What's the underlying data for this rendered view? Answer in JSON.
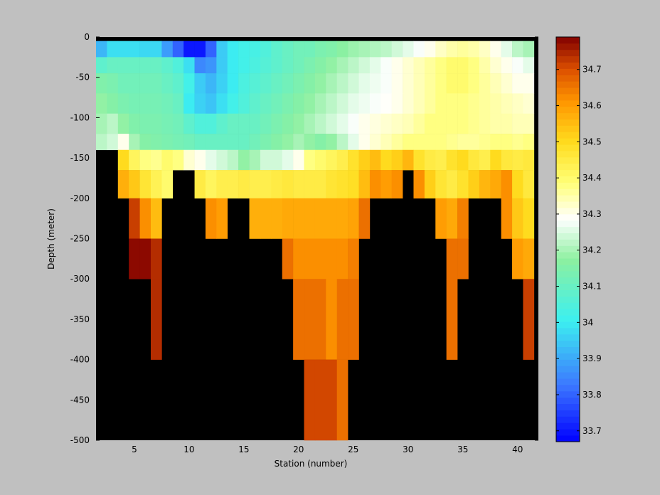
{
  "chart_data": {
    "type": "heatmap",
    "xlabel": "Station (number)",
    "ylabel": "Depth (meter)",
    "xlim": [
      1.5,
      41.9
    ],
    "ylim": [
      -500,
      0
    ],
    "xticks": [
      5,
      10,
      15,
      20,
      25,
      30,
      35,
      40
    ],
    "yticks": [
      0,
      -50,
      -100,
      -150,
      -200,
      -250,
      -300,
      -350,
      -400,
      -450,
      -500
    ],
    "colorbar": {
      "range": [
        33.67,
        34.79
      ],
      "ticks": [
        33.7,
        33.8,
        33.9,
        34,
        34.1,
        34.2,
        34.3,
        34.4,
        34.5,
        34.6,
        34.7
      ],
      "colormap": "jet-like: blue-cyan-green-white-yellow-orange-darkred"
    },
    "nodata_color": "#000000",
    "depth_rows": [
      {
        "depth_top": -5,
        "depth_bottom": -25,
        "stations": [
          2,
          3,
          4,
          5,
          6,
          7,
          8,
          9,
          10,
          11,
          12,
          13,
          14,
          15,
          16,
          17,
          18,
          19,
          20,
          21,
          22,
          23,
          24,
          25,
          26,
          27,
          28,
          29,
          30,
          31,
          32,
          33,
          34,
          35,
          36,
          37,
          38,
          39,
          40,
          41
        ],
        "values": [
          33.92,
          33.98,
          33.98,
          33.98,
          33.97,
          33.97,
          33.88,
          33.8,
          33.7,
          33.7,
          33.8,
          33.95,
          34.0,
          34.02,
          34.03,
          34.05,
          34.08,
          34.1,
          34.12,
          34.12,
          34.14,
          34.15,
          34.17,
          34.19,
          34.2,
          34.21,
          34.22,
          34.24,
          34.26,
          34.28,
          34.3,
          34.33,
          34.35,
          34.36,
          34.35,
          34.33,
          34.3,
          34.26,
          34.22,
          34.2
        ]
      },
      {
        "depth_top": -25,
        "depth_bottom": -45,
        "stations": [
          2,
          3,
          4,
          5,
          6,
          7,
          8,
          9,
          10,
          11,
          12,
          13,
          14,
          15,
          16,
          17,
          18,
          19,
          20,
          21,
          22,
          23,
          24,
          25,
          26,
          27,
          28,
          29,
          30,
          31,
          32,
          33,
          34,
          35,
          36,
          37,
          38,
          39,
          40,
          41
        ],
        "values": [
          34.08,
          34.1,
          34.1,
          34.1,
          34.1,
          34.1,
          34.08,
          34.05,
          33.98,
          33.85,
          33.87,
          33.95,
          34.0,
          34.02,
          34.04,
          34.06,
          34.08,
          34.1,
          34.12,
          34.14,
          34.16,
          34.18,
          34.2,
          34.22,
          34.24,
          34.26,
          34.28,
          34.3,
          34.32,
          34.34,
          34.36,
          34.38,
          34.4,
          34.4,
          34.38,
          34.35,
          34.32,
          34.3,
          34.28,
          34.26
        ]
      },
      {
        "depth_top": -45,
        "depth_bottom": -70,
        "stations": [
          2,
          3,
          4,
          5,
          6,
          7,
          8,
          9,
          10,
          11,
          12,
          13,
          14,
          15,
          16,
          17,
          18,
          19,
          20,
          21,
          22,
          23,
          24,
          25,
          26,
          27,
          28,
          29,
          30,
          31,
          32,
          33,
          34,
          35,
          36,
          37,
          38,
          39,
          40,
          41
        ],
        "values": [
          34.15,
          34.14,
          34.12,
          34.12,
          34.12,
          34.12,
          34.1,
          34.08,
          34.02,
          33.95,
          33.92,
          33.96,
          34.0,
          34.04,
          34.06,
          34.08,
          34.1,
          34.12,
          34.14,
          34.16,
          34.18,
          34.2,
          34.22,
          34.24,
          34.26,
          34.27,
          34.28,
          34.3,
          34.32,
          34.34,
          34.36,
          34.38,
          34.4,
          34.4,
          34.38,
          34.36,
          34.34,
          34.32,
          34.3,
          34.3
        ]
      },
      {
        "depth_top": -70,
        "depth_bottom": -95,
        "stations": [
          2,
          3,
          4,
          5,
          6,
          7,
          8,
          9,
          10,
          11,
          12,
          13,
          14,
          15,
          16,
          17,
          18,
          19,
          20,
          21,
          22,
          23,
          24,
          25,
          26,
          27,
          28,
          29,
          30,
          31,
          32,
          33,
          34,
          35,
          36,
          37,
          38,
          39,
          40,
          41
        ],
        "values": [
          34.18,
          34.16,
          34.14,
          34.13,
          34.13,
          34.13,
          34.12,
          34.1,
          34.0,
          33.96,
          33.94,
          33.98,
          34.02,
          34.05,
          34.08,
          34.1,
          34.12,
          34.14,
          34.16,
          34.18,
          34.2,
          34.22,
          34.24,
          34.26,
          34.27,
          34.28,
          34.29,
          34.3,
          34.32,
          34.34,
          34.36,
          34.38,
          34.38,
          34.38,
          34.37,
          34.36,
          34.35,
          34.34,
          34.33,
          34.32
        ]
      },
      {
        "depth_top": -95,
        "depth_bottom": -120,
        "stations": [
          2,
          3,
          4,
          5,
          6,
          7,
          8,
          9,
          10,
          11,
          12,
          13,
          14,
          15,
          16,
          17,
          18,
          19,
          20,
          21,
          22,
          23,
          24,
          25,
          26,
          27,
          28,
          29,
          30,
          31,
          32,
          33,
          34,
          35,
          36,
          37,
          38,
          39,
          40,
          41
        ],
        "values": [
          34.2,
          34.22,
          34.18,
          34.15,
          34.14,
          34.14,
          34.13,
          34.12,
          34.08,
          34.05,
          34.05,
          34.08,
          34.1,
          34.1,
          34.1,
          34.12,
          34.14,
          34.16,
          34.18,
          34.2,
          34.22,
          34.24,
          34.26,
          34.28,
          34.3,
          34.31,
          34.32,
          34.33,
          34.34,
          34.36,
          34.38,
          34.38,
          34.38,
          34.38,
          34.37,
          34.36,
          34.35,
          34.35,
          34.34,
          34.34
        ]
      },
      {
        "depth_top": -120,
        "depth_bottom": -140,
        "stations": [
          2,
          3,
          4,
          5,
          6,
          7,
          8,
          9,
          10,
          11,
          12,
          13,
          14,
          15,
          16,
          17,
          18,
          19,
          20,
          21,
          22,
          23,
          24,
          25,
          26,
          27,
          28,
          29,
          30,
          31,
          32,
          33,
          34,
          35,
          36,
          37,
          38,
          39,
          40,
          41
        ],
        "values": [
          34.22,
          34.24,
          34.3,
          34.2,
          34.16,
          34.15,
          34.14,
          34.13,
          34.12,
          34.1,
          34.1,
          34.1,
          34.1,
          34.1,
          34.12,
          34.14,
          34.16,
          34.18,
          34.2,
          34.18,
          34.16,
          34.18,
          34.22,
          34.26,
          34.3,
          34.32,
          34.34,
          34.36,
          34.38,
          34.38,
          34.38,
          34.38,
          34.37,
          34.36,
          34.36,
          34.37,
          34.38,
          34.38,
          34.37,
          34.38
        ]
      },
      {
        "depth_top": -140,
        "depth_bottom": -165,
        "stations": [
          4,
          5,
          6,
          7,
          8,
          9,
          10,
          11,
          12,
          13,
          14,
          15,
          16,
          17,
          18,
          19,
          20,
          21,
          22,
          23,
          24,
          25,
          26,
          27,
          28,
          29,
          30,
          31,
          32,
          33,
          34,
          35,
          36,
          37,
          38,
          39,
          40,
          41
        ],
        "values": [
          34.5,
          34.42,
          34.38,
          34.37,
          34.4,
          34.38,
          34.32,
          34.3,
          34.26,
          34.24,
          34.22,
          34.18,
          34.2,
          34.24,
          34.24,
          34.26,
          34.3,
          34.38,
          34.4,
          34.42,
          34.44,
          34.48,
          34.52,
          34.55,
          34.5,
          34.52,
          34.56,
          34.48,
          34.45,
          34.44,
          34.48,
          34.5,
          34.46,
          34.44,
          34.5,
          34.46,
          34.45,
          34.46
        ]
      },
      {
        "depth_top": -165,
        "depth_bottom": -200,
        "stations": [
          4,
          5,
          6,
          7,
          8,
          11,
          12,
          13,
          14,
          15,
          16,
          17,
          18,
          19,
          20,
          21,
          22,
          23,
          24,
          25,
          26,
          27,
          28,
          29,
          31,
          32,
          33,
          34,
          35,
          36,
          37,
          38,
          39,
          40,
          41
        ],
        "values": [
          34.57,
          34.53,
          34.47,
          34.43,
          34.4,
          34.45,
          34.42,
          34.44,
          34.44,
          34.45,
          34.44,
          34.44,
          34.45,
          34.46,
          34.45,
          34.45,
          34.45,
          34.47,
          34.48,
          34.49,
          34.55,
          34.62,
          34.6,
          34.62,
          34.62,
          34.52,
          34.47,
          34.45,
          34.48,
          34.52,
          34.56,
          34.58,
          34.62,
          34.5,
          34.46
        ]
      },
      {
        "depth_top": -200,
        "depth_bottom": -250,
        "stations": [
          5,
          6,
          7,
          12,
          13,
          16,
          17,
          18,
          19,
          20,
          21,
          22,
          23,
          24,
          25,
          26,
          33,
          34,
          35,
          39,
          40,
          41
        ],
        "values": [
          34.72,
          34.62,
          34.55,
          34.62,
          34.6,
          34.57,
          34.57,
          34.57,
          34.58,
          34.58,
          34.58,
          34.58,
          34.58,
          34.58,
          34.59,
          34.66,
          34.6,
          34.58,
          34.64,
          34.62,
          34.53,
          34.5
        ]
      },
      {
        "depth_top": -250,
        "depth_bottom": -300,
        "stations": [
          5,
          6,
          7,
          19,
          20,
          21,
          22,
          23,
          24,
          25,
          34,
          35,
          40,
          41
        ],
        "values": [
          34.78,
          34.78,
          34.74,
          34.66,
          34.62,
          34.62,
          34.62,
          34.62,
          34.62,
          34.64,
          34.66,
          34.66,
          34.6,
          34.58
        ]
      },
      {
        "depth_top": -300,
        "depth_bottom": -400,
        "stations": [
          7,
          20,
          21,
          22,
          23,
          24,
          25,
          34,
          41
        ],
        "values": [
          34.74,
          34.66,
          34.66,
          34.66,
          34.62,
          34.66,
          34.66,
          34.66,
          34.72
        ]
      },
      {
        "depth_top": -400,
        "depth_bottom": -500,
        "stations": [
          21,
          22,
          23,
          24
        ],
        "values": [
          34.71,
          34.71,
          34.71,
          34.66
        ]
      }
    ]
  }
}
